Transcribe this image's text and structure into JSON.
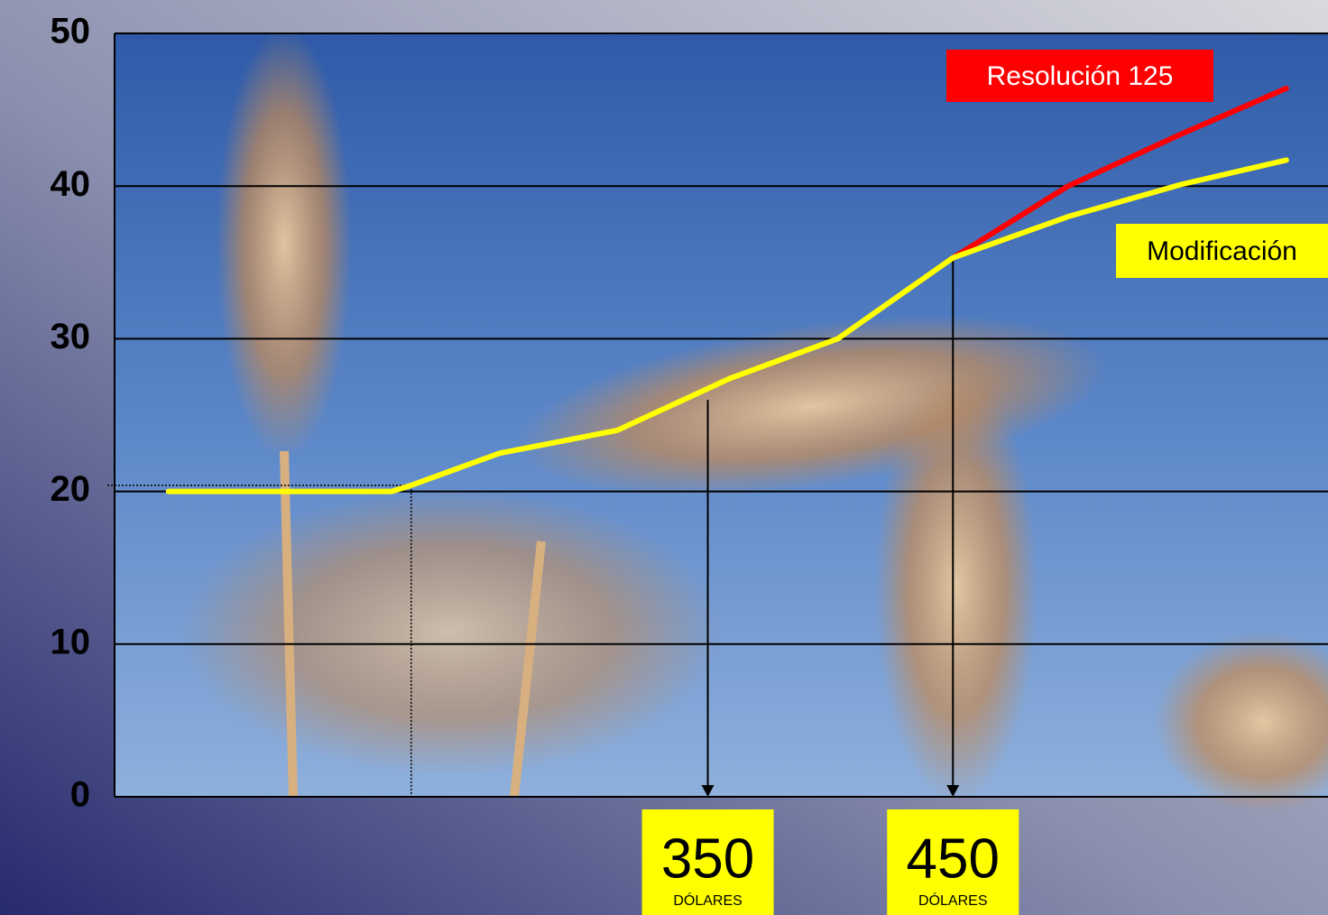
{
  "chart_data": {
    "type": "line",
    "x": [
      130,
      221,
      229,
      265,
      313,
      359,
      403,
      450,
      497,
      543,
      586
    ],
    "xlim": [
      108,
      603
    ],
    "ylim": [
      0,
      50
    ],
    "yticks": [
      0,
      10,
      20,
      30,
      40,
      50
    ],
    "grid": true,
    "series": [
      {
        "name": "Resolución 125",
        "color": "#ff0000",
        "values": [
          null,
          null,
          null,
          null,
          null,
          null,
          null,
          35.3,
          40,
          43.4,
          46.4
        ]
      },
      {
        "name": "Modificación",
        "color": "#ffff00",
        "values": [
          20,
          20,
          20.4,
          22.5,
          24,
          27.4,
          30,
          35.3,
          38,
          40.1,
          41.7
        ]
      }
    ],
    "annotations": [
      {
        "x": 350,
        "y": 26,
        "sublabel": "DÓLARES"
      },
      {
        "x": 450,
        "y": 35.3,
        "sublabel": "DÓLARES"
      }
    ]
  }
}
